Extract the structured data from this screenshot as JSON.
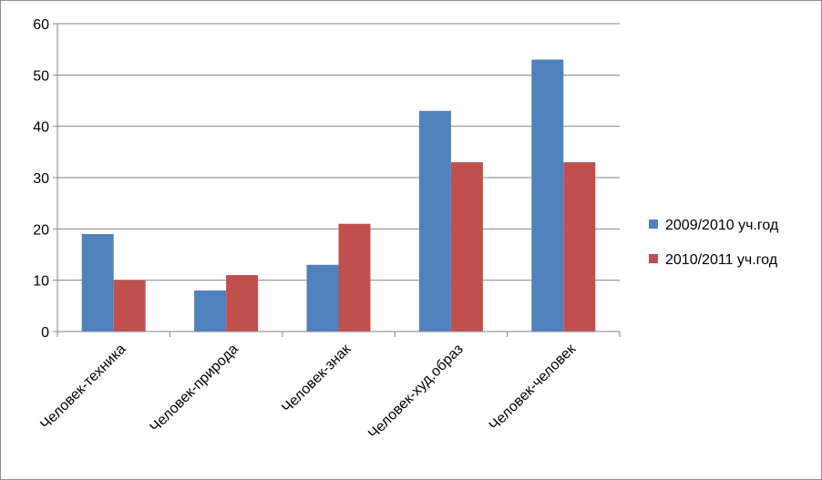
{
  "chart_data": {
    "type": "bar",
    "title": "",
    "xlabel": "",
    "ylabel": "",
    "categories": [
      "Человек-техника",
      "Человек-природа",
      "Человек-знак",
      "Человек-худ.образ",
      "Человек-человек"
    ],
    "series": [
      {
        "name": "2009/2010 уч.год",
        "color": "#4F81BD",
        "values": [
          19,
          8,
          13,
          43,
          53
        ]
      },
      {
        "name": "2010/2011 уч.год",
        "color": "#C0504D",
        "values": [
          10,
          11,
          21,
          33,
          33
        ]
      }
    ],
    "ylim": [
      0,
      60
    ],
    "yticks": [
      0,
      10,
      20,
      30,
      40,
      50,
      60
    ],
    "grid": true,
    "legend_position": "right"
  }
}
